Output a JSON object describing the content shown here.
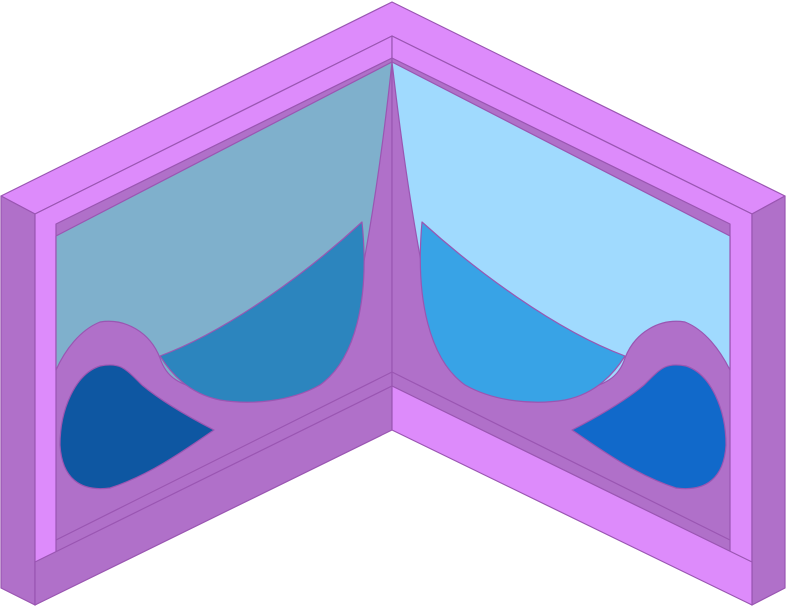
{
  "colors": {
    "frame_top": "#DD8BFB",
    "frame_face": "#DD8BFB",
    "frame_side": "#B070C9",
    "inner_border": "#B070C9",
    "outline": "#9A56B2",
    "sky_left": "#7FB0CC",
    "sky_right": "#A0DAFE",
    "wave_left": "#2C85BE",
    "wave_right": "#38A3E6",
    "drop_left": "#0E57A2",
    "drop_right": "#1169CA"
  },
  "icons": {
    "scene": "corner-diorama-icon"
  }
}
